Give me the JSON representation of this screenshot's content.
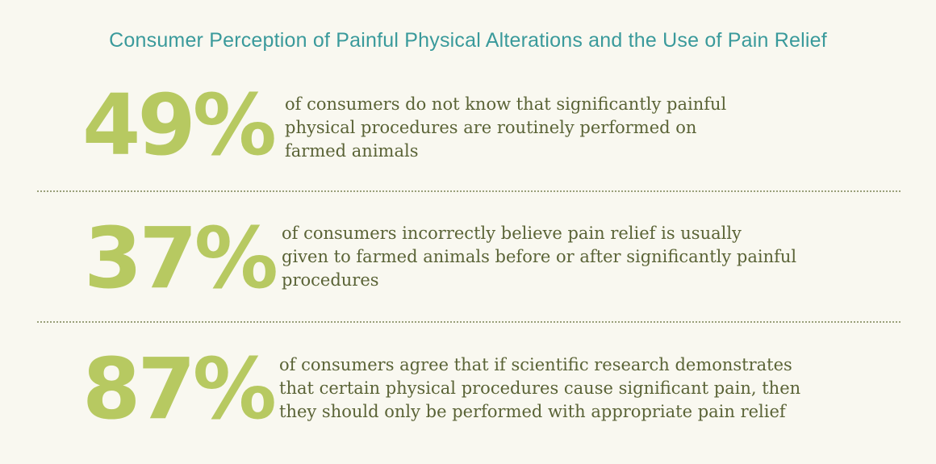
{
  "title": "Consumer Perception of Painful Physical Alterations and the Use of Pain Relief",
  "colors": {
    "background": "#f9f8f0",
    "title": "#3a9a9b",
    "stat": "#b7c961",
    "text": "#5a6336",
    "divider": "#9aa07a"
  },
  "stats": [
    {
      "value": "49%",
      "lines": [
        "of consumers do not know that significantly painful",
        "physical procedures are routinely performed on",
        "farmed animals"
      ]
    },
    {
      "value": "37%",
      "lines": [
        "of consumers incorrectly believe pain relief is usually",
        "given to farmed animals before or after significantly painful",
        "procedures"
      ]
    },
    {
      "value": "87%",
      "lines": [
        "of consumers agree that if scientific research demonstrates",
        "that certain physical procedures cause significant pain, then",
        "they should only be performed with appropriate pain relief"
      ]
    }
  ]
}
